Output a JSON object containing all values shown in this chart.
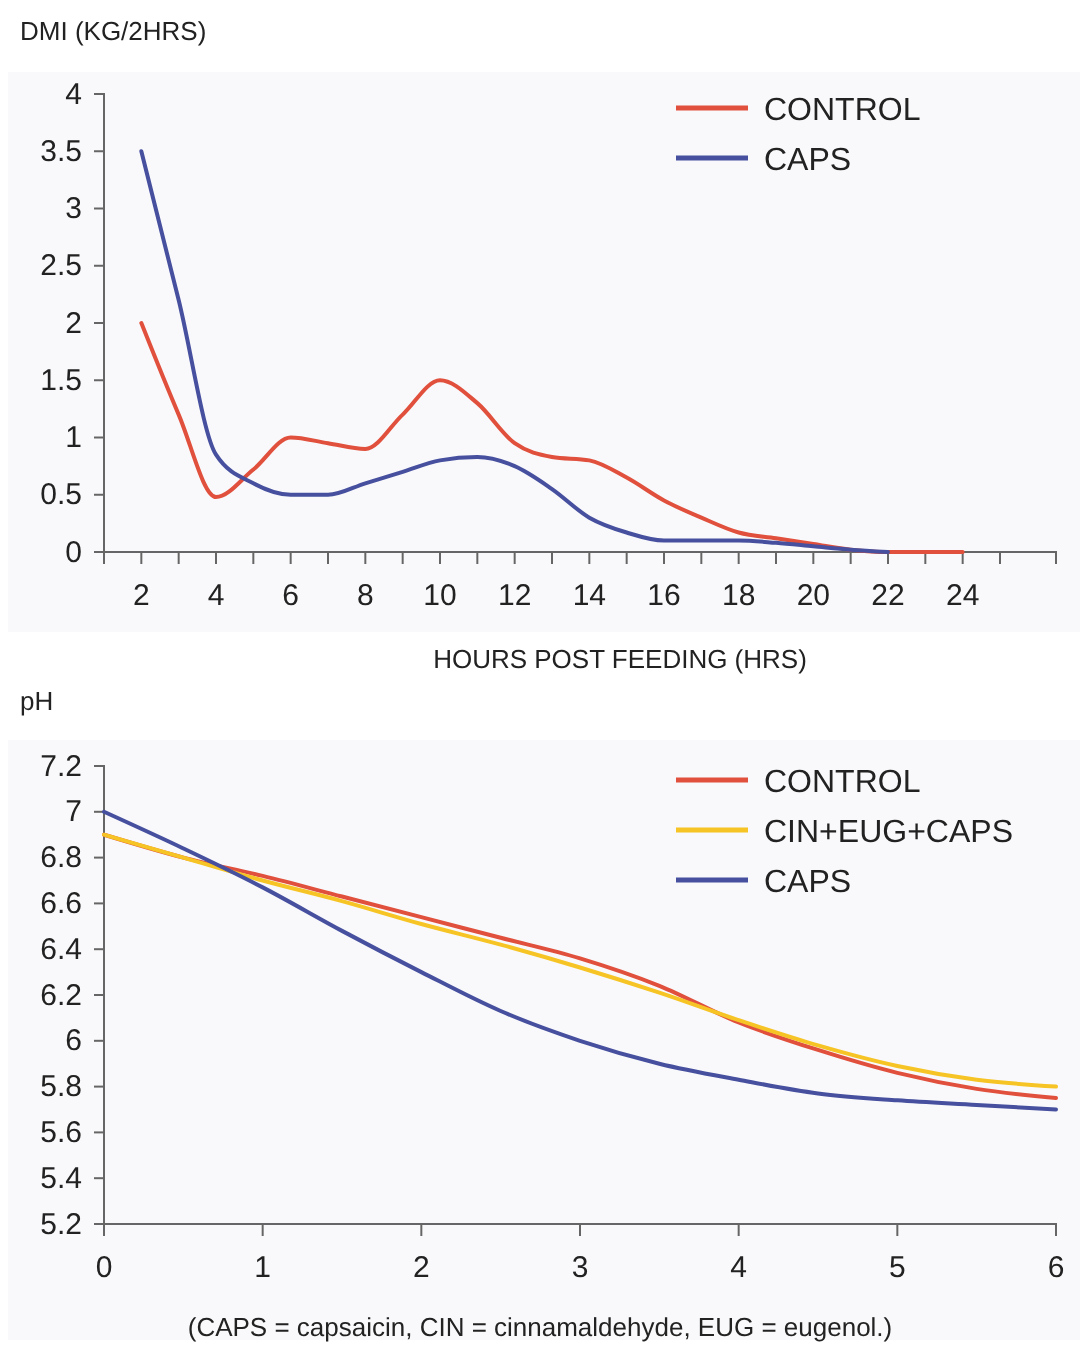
{
  "chart_data": [
    {
      "type": "line",
      "ylabel": "DMI (KG/2HRS)",
      "xlabel": "HOURS POST FEEDING (HRS)",
      "x": [
        2,
        3,
        4,
        5,
        6,
        7,
        8,
        9,
        10,
        11,
        12,
        13,
        14,
        15,
        16,
        17,
        18,
        19,
        20,
        21,
        22,
        23,
        24
      ],
      "series": [
        {
          "name": "CONTROL",
          "color": "#e0503c",
          "values": [
            2.0,
            1.2,
            0.48,
            0.72,
            1.0,
            0.95,
            0.9,
            1.2,
            1.5,
            1.3,
            0.95,
            0.83,
            0.8,
            0.65,
            0.45,
            0.3,
            0.17,
            0.12,
            0.07,
            0.02,
            0,
            0,
            0
          ]
        },
        {
          "name": "CAPS",
          "color": "#46509e",
          "values": [
            3.5,
            2.2,
            0.85,
            0.6,
            0.5,
            0.5,
            0.6,
            0.7,
            0.8,
            0.83,
            0.75,
            0.55,
            0.3,
            0.17,
            0.1,
            0.1,
            0.1,
            0.08,
            0.05,
            0.02,
            0,
            null,
            null
          ]
        }
      ],
      "xlim": [
        1,
        26.5
      ],
      "xticks": [
        {
          "value": 1,
          "label": null
        },
        2,
        {
          "value": 3,
          "label": null
        },
        4,
        {
          "value": 5,
          "label": null
        },
        6,
        {
          "value": 7,
          "label": null
        },
        8,
        {
          "value": 9,
          "label": null
        },
        10,
        {
          "value": 11,
          "label": null
        },
        12,
        {
          "value": 13,
          "label": null
        },
        14,
        {
          "value": 15,
          "label": null
        },
        16,
        {
          "value": 17,
          "label": null
        },
        18,
        {
          "value": 19,
          "label": null
        },
        20,
        {
          "value": 21,
          "label": null
        },
        22,
        {
          "value": 23,
          "label": null
        },
        24,
        {
          "value": 25,
          "label": null
        }
      ],
      "ylim": [
        0,
        4
      ],
      "yticks": [
        0,
        0.5,
        1,
        1.5,
        2,
        2.5,
        3,
        3.5,
        4
      ],
      "grid": false,
      "legend": "top right",
      "marker": "none",
      "line_style": "solid"
    },
    {
      "type": "line",
      "ylabel": "pH",
      "annotations": [
        "(CAPS = capsaicin, CIN = cinnamaldehyde, EUG = eugenol.)"
      ],
      "x": [
        0,
        0.5,
        1,
        1.5,
        2,
        2.5,
        3,
        3.5,
        4,
        4.5,
        5,
        5.5,
        6
      ],
      "series": [
        {
          "name": "CONTROL",
          "color": "#e0503c",
          "values": [
            6.9,
            6.8,
            6.72,
            6.63,
            6.54,
            6.45,
            6.36,
            6.24,
            6.08,
            5.96,
            5.86,
            5.79,
            5.75
          ]
        },
        {
          "name": "CIN+EUG+CAPS",
          "color": "#f6c425",
          "values": [
            6.9,
            6.8,
            6.7,
            6.61,
            6.51,
            6.42,
            6.32,
            6.21,
            6.09,
            5.98,
            5.89,
            5.83,
            5.8
          ]
        },
        {
          "name": "CAPS",
          "color": "#46509e",
          "values": [
            7.0,
            6.84,
            6.67,
            6.48,
            6.3,
            6.13,
            6.0,
            5.9,
            5.83,
            5.77,
            5.74,
            5.72,
            5.7
          ]
        }
      ],
      "xlim": [
        0,
        6
      ],
      "xticks": [
        0,
        1,
        2,
        3,
        4,
        5,
        6
      ],
      "ylim": [
        5.2,
        7.2
      ],
      "yticks": [
        5.2,
        5.4,
        5.6,
        5.8,
        6,
        6.2,
        6.4,
        6.6,
        6.8,
        7,
        7.2
      ],
      "grid": false,
      "legend": "top right",
      "marker": "none",
      "line_style": "solid"
    }
  ]
}
